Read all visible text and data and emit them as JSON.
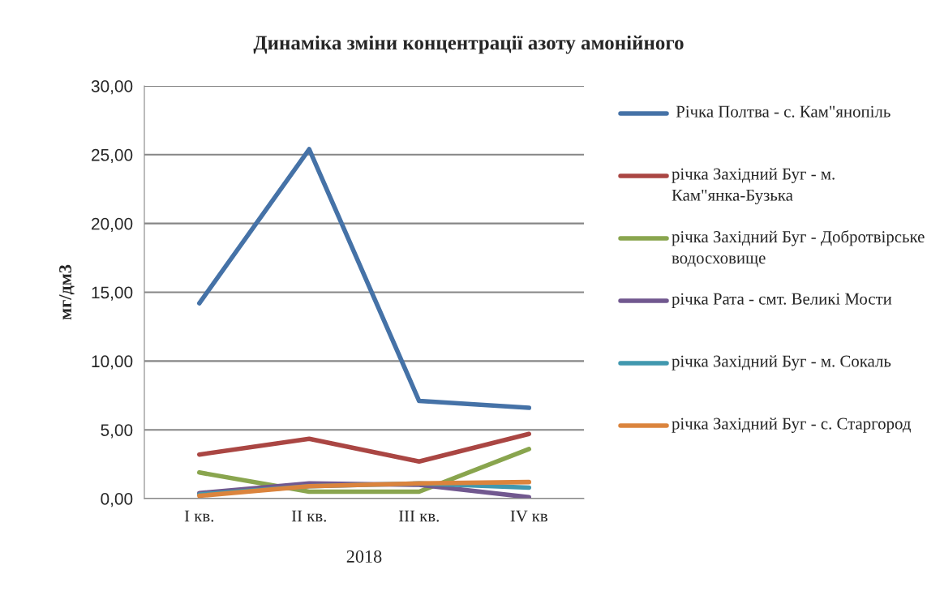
{
  "chart_data": {
    "type": "line",
    "title": "Динаміка зміни концентрації азоту амонійного",
    "ylabel": "мг/дм3",
    "xlabel": "2018",
    "categories": [
      "I кв.",
      "II кв.",
      "III кв.",
      "IV кв"
    ],
    "series": [
      {
        "name": " Річка Полтва - с. Кам\"янопіль",
        "color": "#4572a7",
        "values": [
          14.2,
          25.4,
          7.1,
          6.6
        ]
      },
      {
        "name": "річка Західний Буг - м. Кам\"янка-Бузька",
        "color": "#aa4643",
        "values": [
          3.2,
          4.35,
          2.7,
          4.7
        ]
      },
      {
        "name": "річка Західний Буг - Добротвірське водосховище",
        "color": "#89a54e",
        "values": [
          1.9,
          0.5,
          0.5,
          3.6
        ]
      },
      {
        "name": "річка Рата - смт. Великі Мости",
        "color": "#71588f",
        "values": [
          0.4,
          1.1,
          1.0,
          0.1
        ]
      },
      {
        "name": "річка Західний Буг - м. Сокаль",
        "color": "#4198af",
        "values": [
          0.3,
          0.9,
          1.1,
          0.8
        ]
      },
      {
        "name": "річка Західний Буг - с. Старгород",
        "color": "#db843d",
        "values": [
          0.2,
          0.9,
          1.1,
          1.2
        ]
      }
    ],
    "ylim": [
      0,
      30
    ],
    "yticks": [
      {
        "value": 0,
        "label": "0,00"
      },
      {
        "value": 5,
        "label": "5,00"
      },
      {
        "value": 10,
        "label": "10,00"
      },
      {
        "value": 15,
        "label": "15,00"
      },
      {
        "value": 20,
        "label": "20,00"
      },
      {
        "value": 25,
        "label": "25,00"
      },
      {
        "value": 30,
        "label": "30,00"
      }
    ],
    "grid": "y",
    "legend": "right",
    "marker": "none",
    "line_style": "solid"
  }
}
